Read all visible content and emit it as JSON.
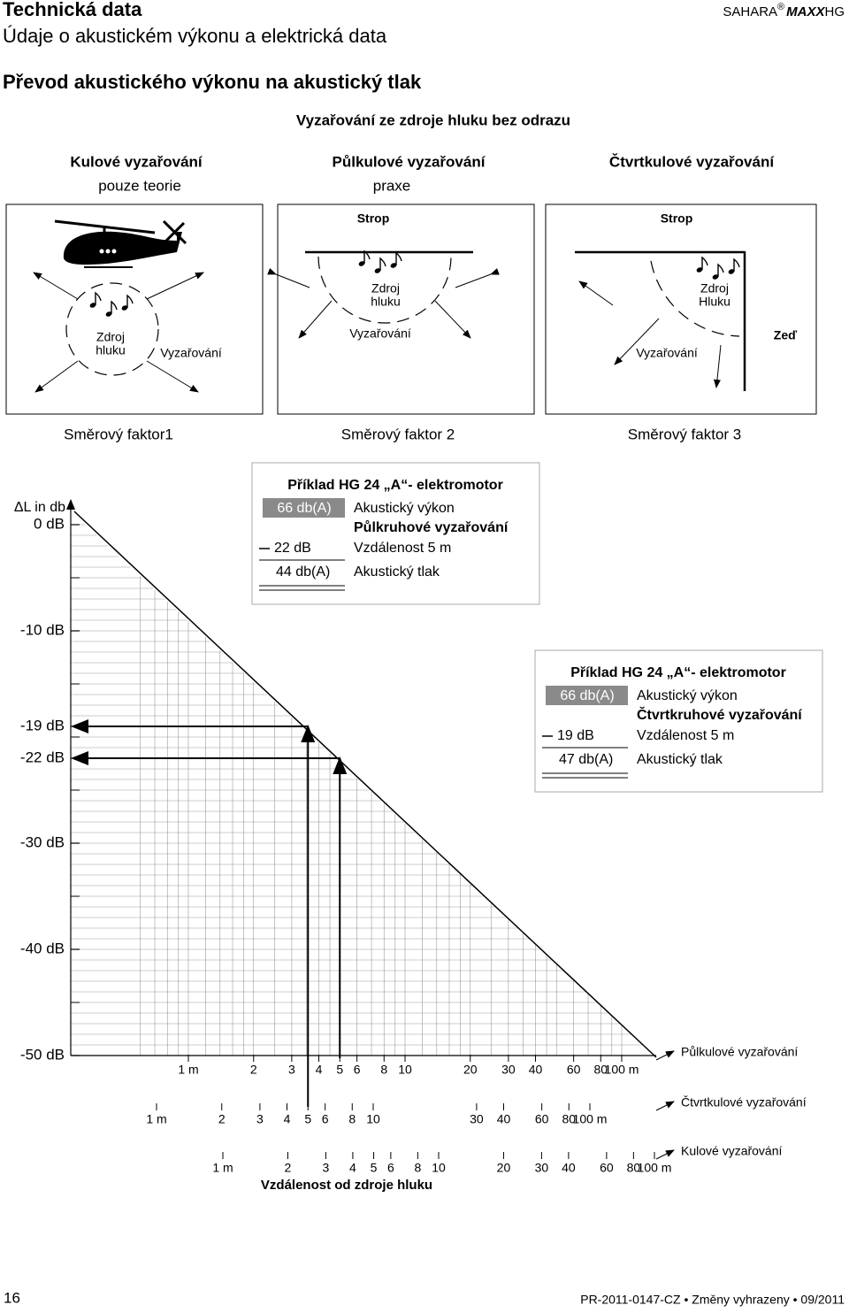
{
  "header": {
    "title": "Technická data",
    "subtitle": "Údaje o akustickém výkonu a elektrická data",
    "brand": "SAHARA",
    "brand_mark": "®",
    "brand_model": "MAXX",
    "brand_suffix": "HG"
  },
  "section_title": "Převod akustického výkonu na akustický tlak",
  "radiation": {
    "heading": "Vyzařování ze zdroje hluku bez odrazu",
    "types": [
      {
        "title": "Kulové vyzařování",
        "subtitle": "pouze teorie",
        "factor": "Směrový faktor1"
      },
      {
        "title": "Půlkulové vyzařování",
        "subtitle": "praxe",
        "factor": "Směrový faktor 2"
      },
      {
        "title": "Čtvrtkulové vyzařování",
        "factor": "Směrový faktor 3"
      }
    ],
    "panels": [
      {
        "source": [
          "Zdroj",
          "hluku"
        ],
        "emission": "Vyzařování"
      },
      {
        "ceiling": "Strop",
        "source": [
          "Zdroj",
          "hluku"
        ],
        "emission": "Vyzařování"
      },
      {
        "ceiling": "Strop",
        "source": [
          "Zdroj",
          "Hluku"
        ],
        "emission": "Vyzařování",
        "wall": "Zeď"
      }
    ]
  },
  "nomogram": {
    "y_label": "ΔL in db",
    "yticks": [
      {
        "value": 0,
        "label": "0 dB"
      },
      {
        "value": -10,
        "label": "-10 dB"
      },
      {
        "value": -19,
        "label": "-19 dB"
      },
      {
        "value": -22,
        "label": "-22 dB"
      },
      {
        "value": -30,
        "label": "-30 dB"
      },
      {
        "value": -40,
        "label": "-40 dB"
      },
      {
        "value": -50,
        "label": "-50 dB"
      }
    ],
    "scales": [
      {
        "name": "Půlkulové vyzařování",
        "ticks": [
          {
            "value": 1,
            "label": "1 m"
          },
          2,
          3,
          4,
          5,
          6,
          8,
          10,
          20,
          30,
          40,
          60,
          80,
          {
            "value": 100,
            "label": "100 m"
          }
        ]
      },
      {
        "name": "Čtvrtkulové vyzařování",
        "ticks": [
          {
            "value": 1,
            "label": "1 m"
          },
          2,
          3,
          4,
          5,
          6,
          8,
          10,
          30,
          40,
          60,
          80,
          {
            "value": 100,
            "label": "100 m"
          }
        ]
      },
      {
        "name": "Kulové vyzařování",
        "ticks": [
          {
            "value": 1,
            "label": "1 m"
          },
          2,
          3,
          4,
          5,
          6,
          8,
          10,
          20,
          30,
          40,
          60,
          80,
          {
            "value": 100,
            "label": "100 m"
          }
        ]
      }
    ],
    "x_label": "Vzdálenost od zdroje hluku",
    "examples": [
      {
        "title": "Příklad HG 24 „A“- elektromotor",
        "power": "66 db(A)",
        "power_label": "Akustický výkon",
        "mode": "Půlkruhové vyzařování",
        "delta": "22 dB",
        "distance": "Vzdálenost 5 m",
        "pressure": "44 db(A)",
        "pressure_label": "Akustický tlak"
      },
      {
        "title": "Příklad HG 24 „A“- elektromotor",
        "power": "66 db(A)",
        "power_label": "Akustický výkon",
        "mode": "Čtvrtkruhové vyzařování",
        "delta": "19 dB",
        "distance": "Vzdálenost 5 m",
        "pressure": "47 db(A)",
        "pressure_label": "Akustický tlak"
      }
    ]
  },
  "footer": {
    "page": "16",
    "ref": "PR-2011-0147-CZ • Změny vyhrazeny • 09/2011"
  }
}
